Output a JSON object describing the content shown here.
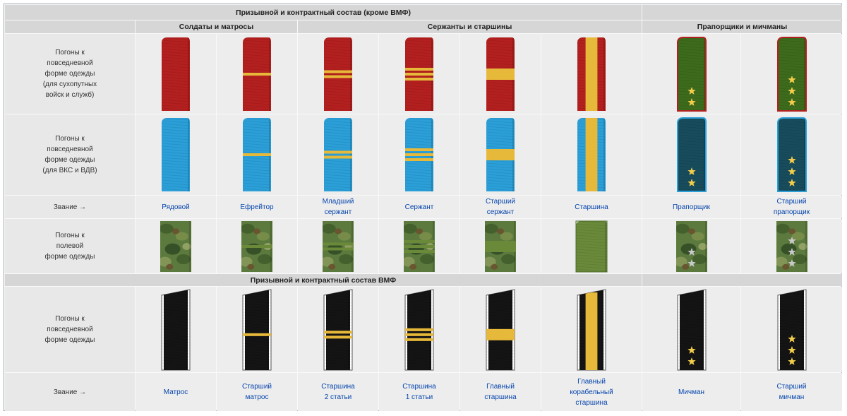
{
  "headers": {
    "conscript_main": "Призывной и контрактный состав (кроме ВМФ)",
    "conscript_navy": "Призывной и контрактный состав ВМФ",
    "group_soldiers": "Солдаты и матросы",
    "group_sergeants": "Сержанты и старшины",
    "group_warrant": "Прапорщики и мичманы"
  },
  "row_labels": {
    "daily_army": "Погоны к\nповседневной\nформе одежды\n(для сухопутных\nвойск и служб)",
    "daily_vks": "Погоны к\nповседневной\nформе одежды\n(для ВКС и ВДВ)",
    "rank": "Звание →",
    "field": "Погоны к\nполевой\nформе одежды",
    "daily_navy": "Погоны к\nповседневной\nформе одежды",
    "rank_navy": "Звание →"
  },
  "ranks": [
    "Рядовой",
    "Ефрейтор",
    "Младший\nсержант",
    "Сержант",
    "Старший\nсержант",
    "Старшина",
    "Прапорщик",
    "Старший\nпрапорщик"
  ],
  "navy_ranks": [
    "Матрос",
    "Старший\nматрос",
    "Старшина\n2 статьи",
    "Старшина\n1 статьи",
    "Главный\nстаршина",
    "Главный\nкорабельный\nстаршина",
    "Мичман",
    "Старший\nмичман"
  ],
  "insignia": [
    {
      "stripes": 0,
      "wide": false,
      "long": false,
      "stars": 0
    },
    {
      "stripes": 1,
      "wide": false,
      "long": false,
      "stars": 0
    },
    {
      "stripes": 2,
      "wide": false,
      "long": false,
      "stars": 0
    },
    {
      "stripes": 3,
      "wide": false,
      "long": false,
      "stars": 0
    },
    {
      "stripes": 1,
      "wide": true,
      "long": false,
      "stars": 0
    },
    {
      "stripes": 0,
      "wide": false,
      "long": true,
      "stars": 0
    },
    {
      "stripes": 0,
      "wide": false,
      "long": false,
      "stars": 2
    },
    {
      "stripes": 0,
      "wide": false,
      "long": false,
      "stars": 3
    }
  ],
  "colors": {
    "army_field": "#b3201f",
    "army_stripe": "#e7b93a",
    "vks_field": "#2b9fd8",
    "vks_stripe": "#e7b93a",
    "warrant_army_field": "#3d6b1c",
    "warrant_army_edge": "#b3201f",
    "warrant_vks_field": "#184c5c",
    "warrant_vks_edge": "#2b9fd8",
    "camo_base": "#5c7a3e",
    "camo_stripe": "#6a8a3a",
    "navy_field": "#141414",
    "navy_stripe": "#e7b93a",
    "star": "#f2cd4b",
    "field_star": "#c9c9c9"
  },
  "icons": {
    "shoulder_board": "shoulder-board-icon",
    "star": "star-icon"
  }
}
